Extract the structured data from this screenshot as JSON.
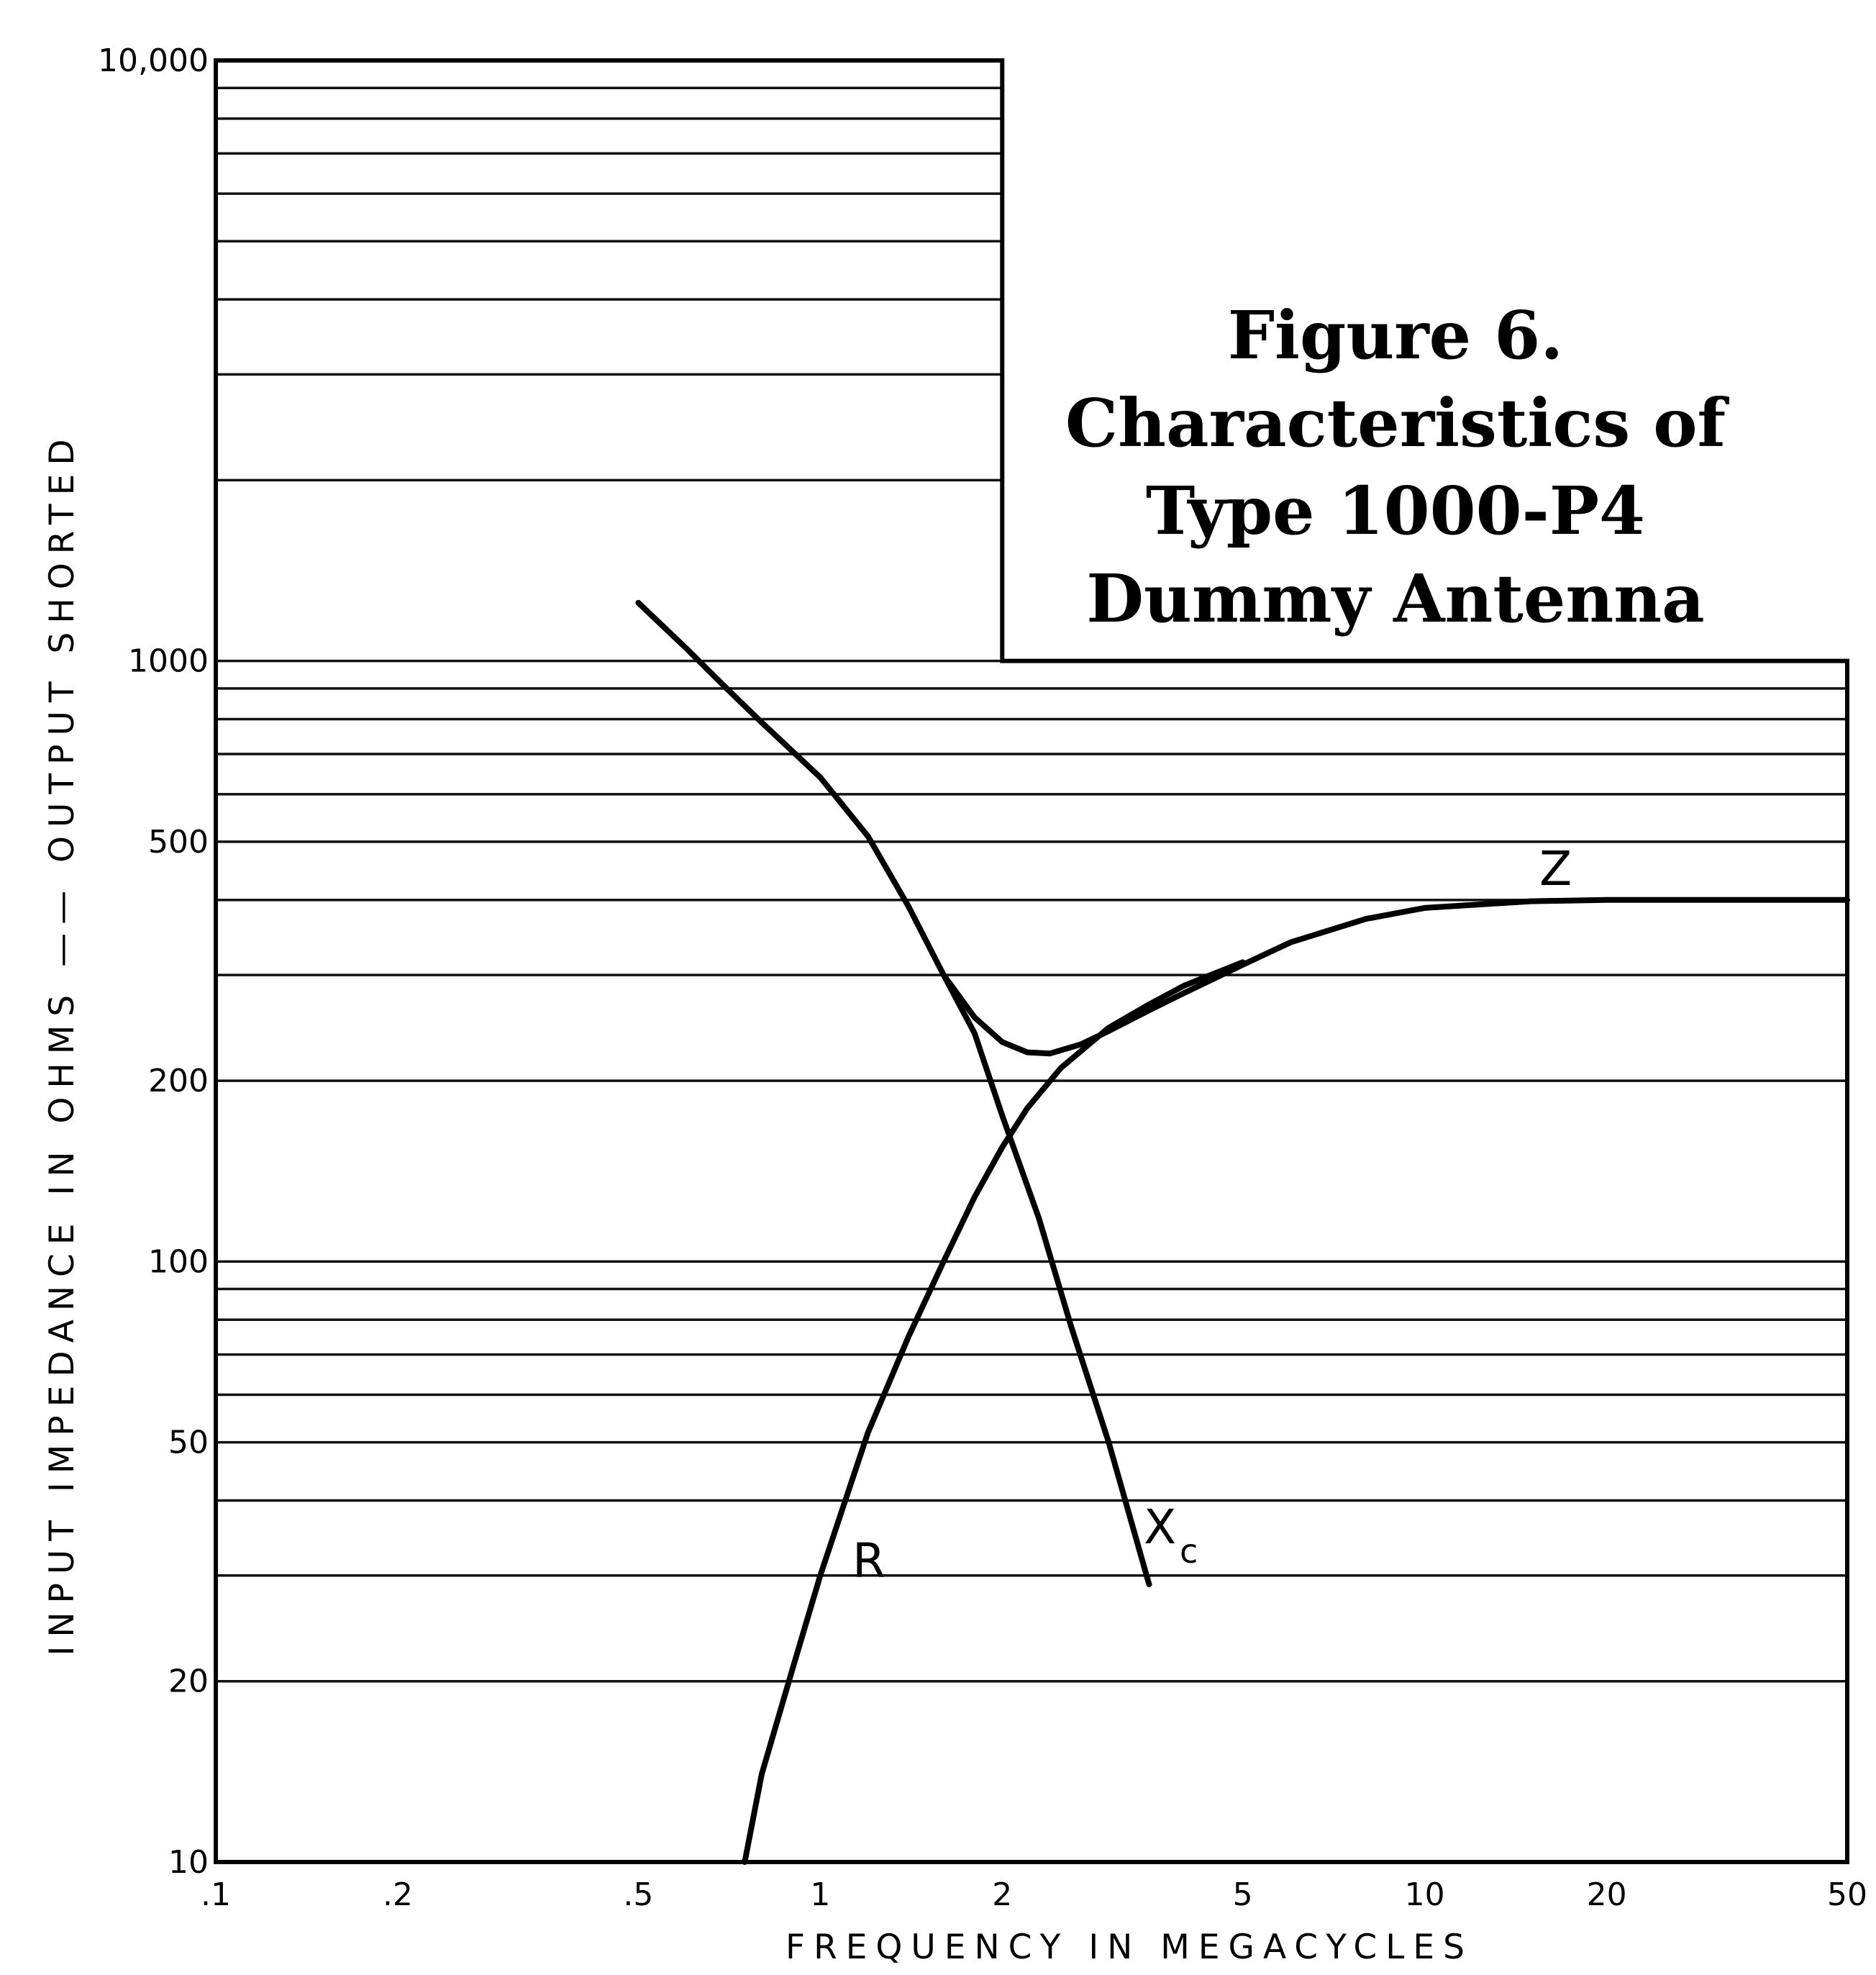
{
  "chart_data": {
    "type": "line",
    "title_lines": [
      "Figure 6.",
      "Characteristics of",
      "Type 1000-P4",
      "Dummy Antenna"
    ],
    "xlabel": "FREQUENCY IN MEGACYCLES",
    "ylabel": "INPUT IMPEDANCE IN OHMS —— OUTPUT SHORTED",
    "x_scale": "log",
    "y_scale": "log",
    "xlim": [
      0.1,
      50
    ],
    "ylim": [
      10,
      10000
    ],
    "x_ticks": [
      0.1,
      0.2,
      0.5,
      1,
      2,
      5,
      10,
      20,
      50
    ],
    "x_tick_labels": [
      ".1",
      ".2",
      ".5",
      "1",
      "2",
      "5",
      "10",
      "20",
      "50"
    ],
    "y_ticks": [
      10,
      20,
      50,
      100,
      200,
      500,
      1000,
      10000
    ],
    "y_tick_labels": [
      "10",
      "20",
      "50",
      "100",
      "200",
      "500",
      "1000",
      "10,000"
    ],
    "grid": true,
    "series": [
      {
        "name": "Z",
        "x": [
          1.6,
          1.8,
          2.0,
          2.2,
          2.4,
          2.7,
          3.0,
          3.5,
          4.0,
          5.0,
          6.0,
          8.0,
          10,
          15,
          20,
          30,
          50
        ],
        "y": [
          300,
          255,
          232,
          223,
          222,
          230,
          242,
          262,
          280,
          312,
          340,
          372,
          388,
          398,
          400,
          400,
          400
        ]
      },
      {
        "name": "Xc",
        "x": [
          0.5,
          0.6,
          0.7,
          0.8,
          1.0,
          1.2,
          1.4,
          1.6,
          1.8,
          2.0,
          2.3,
          2.6,
          3.0,
          3.5
        ],
        "y": [
          1250,
          1050,
          900,
          790,
          640,
          510,
          390,
          300,
          240,
          175,
          118,
          78,
          50,
          29
        ]
      },
      {
        "name": "R",
        "x": [
          0.75,
          0.8,
          0.9,
          1.0,
          1.1,
          1.2,
          1.4,
          1.6,
          1.8,
          2.0,
          2.2,
          2.5,
          3.0,
          3.5,
          4.0,
          5.0
        ],
        "y": [
          10,
          14,
          21,
          30,
          40,
          52,
          75,
          100,
          128,
          155,
          180,
          210,
          245,
          268,
          288,
          315
        ]
      }
    ],
    "series_labels": [
      "Z",
      "X",
      "c",
      "R"
    ]
  }
}
